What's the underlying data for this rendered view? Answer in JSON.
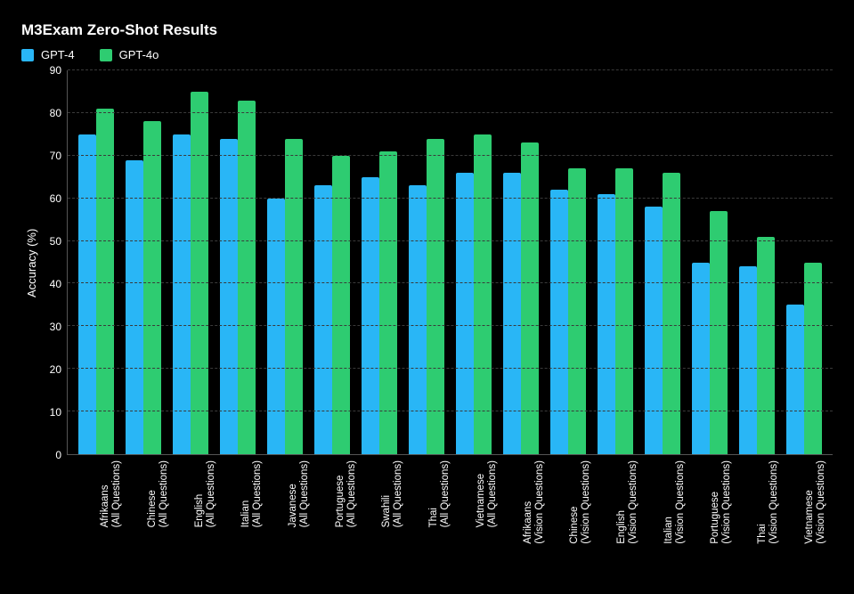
{
  "chart": {
    "type": "bar",
    "title": "M3Exam Zero-Shot Results",
    "title_fontsize": 17,
    "title_fontweight": 700,
    "background_color": "#000000",
    "text_color": "#ffffff",
    "grid_color": "#3a3a3a",
    "axis_color": "#555555",
    "ylabel": "Accuracy (%)",
    "label_fontsize": 13,
    "tick_fontsize": 12,
    "xlabel_fontsize": 11.5,
    "ylim": [
      0,
      90
    ],
    "ytick_step": 10,
    "yticks": [
      0,
      10,
      20,
      30,
      40,
      50,
      60,
      70,
      80,
      90
    ],
    "bar_width_pct": 44,
    "bar_radius": 2,
    "legend_position": "top-left",
    "series": [
      {
        "name": "GPT-4",
        "color": "#29b6f6"
      },
      {
        "name": "GPT-4o",
        "color": "#2ecc71"
      }
    ],
    "categories": [
      {
        "line1": "Afrikaans",
        "line2": "(All Questions)"
      },
      {
        "line1": "Chinese",
        "line2": "(All Questions)"
      },
      {
        "line1": "English",
        "line2": "(All Questions)"
      },
      {
        "line1": "Italian",
        "line2": "(All Questions)"
      },
      {
        "line1": "Javanese",
        "line2": "(All Questions)"
      },
      {
        "line1": "Portuguese",
        "line2": "(All Questions)"
      },
      {
        "line1": "Swahili",
        "line2": "(All Questions)"
      },
      {
        "line1": "Thai",
        "line2": "(All Questions)"
      },
      {
        "line1": "Vietnamese",
        "line2": "(All Questions)"
      },
      {
        "line1": "Afrikaans",
        "line2": "(Vision Questions)"
      },
      {
        "line1": "Chinese",
        "line2": "(Vision Questions)"
      },
      {
        "line1": "English",
        "line2": "(Vision Questions)"
      },
      {
        "line1": "Italian",
        "line2": "(Vision Questions)"
      },
      {
        "line1": "Portuguese",
        "line2": "(Vision Questions)"
      },
      {
        "line1": "Thai",
        "line2": "(Vision Questions)"
      },
      {
        "line1": "Vietnamese",
        "line2": "(Vision Questions)"
      }
    ],
    "values": {
      "GPT-4": [
        75,
        69,
        75,
        74,
        60,
        63,
        65,
        63,
        66,
        66,
        62,
        61,
        58,
        45,
        44,
        35
      ],
      "GPT-4o": [
        81,
        78,
        85,
        83,
        74,
        70,
        71,
        74,
        75,
        73,
        67,
        67,
        66,
        57,
        51,
        45
      ]
    }
  }
}
